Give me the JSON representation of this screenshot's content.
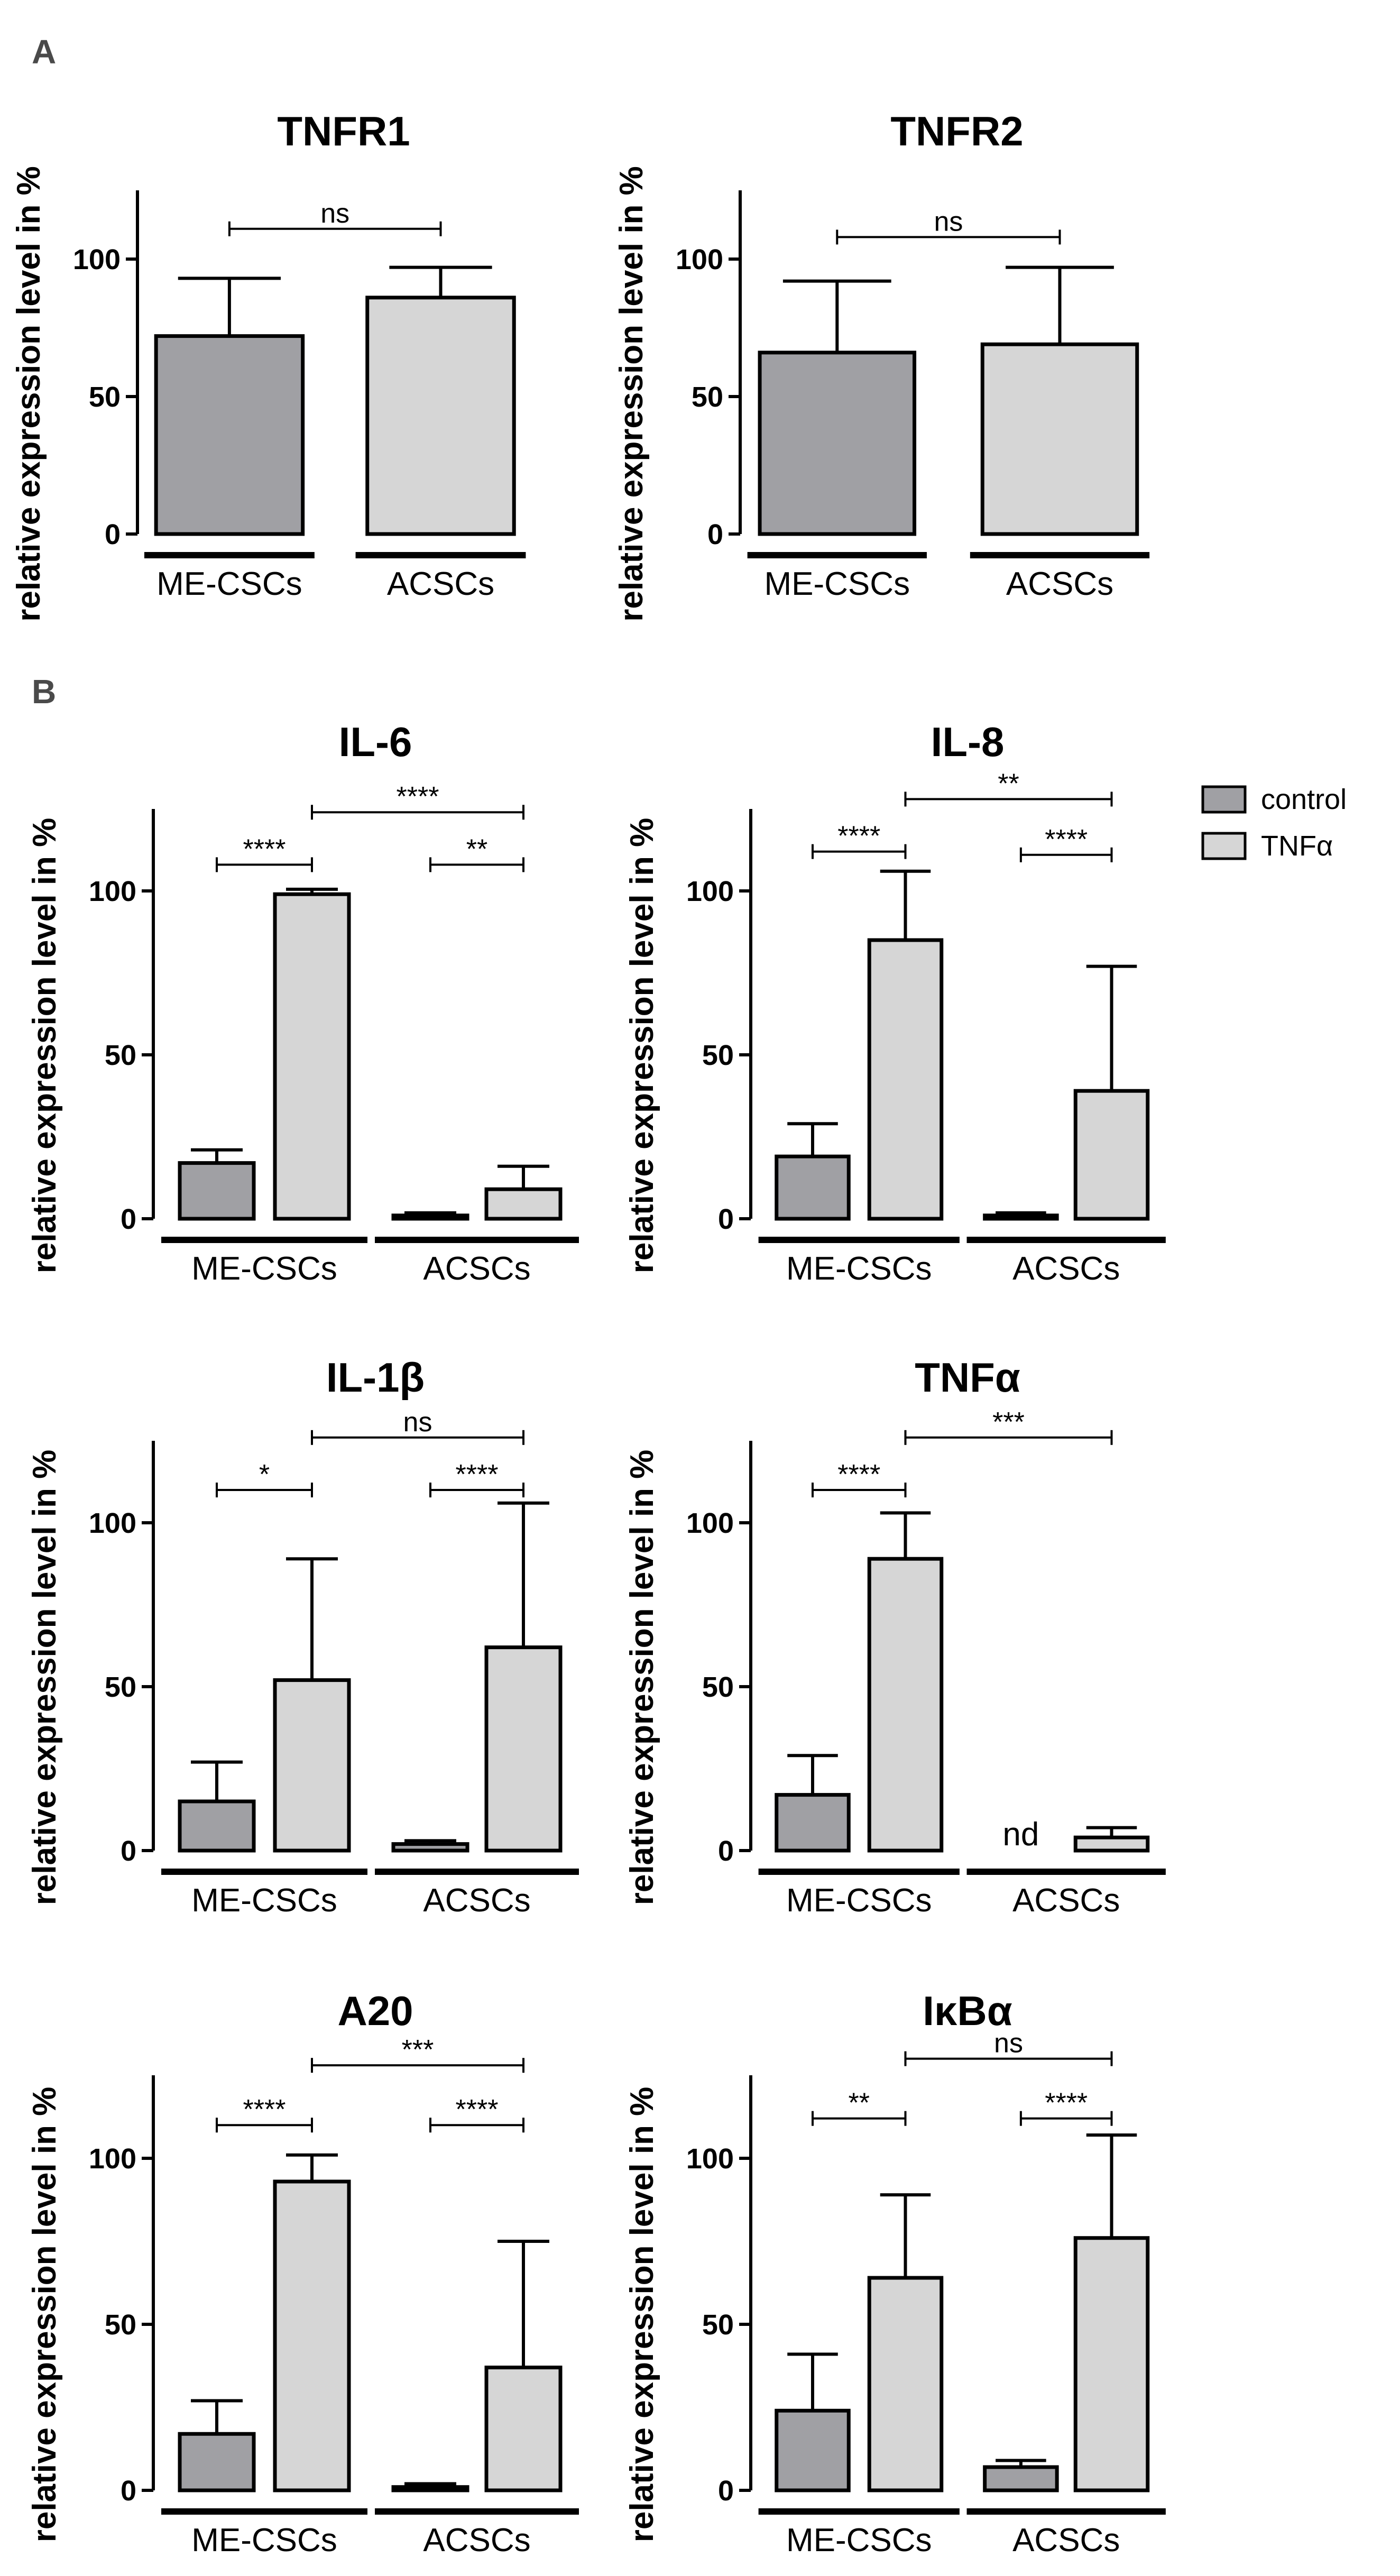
{
  "panel_letters": {
    "a": "A",
    "b": "B"
  },
  "colors": {
    "control": "#a0a0a4",
    "treated": "#d6d6d6",
    "axis": "#000000"
  },
  "legend": [
    {
      "label": "control",
      "color": "#a0a0a4"
    },
    {
      "label": "TNFα",
      "color": "#d6d6d6"
    }
  ],
  "chart_data": [
    {
      "type": "bar",
      "panel": "A",
      "title": "TNFR1",
      "ylabel": "relative expression level in %",
      "ylim": [
        0,
        125
      ],
      "yticks": [
        0,
        50,
        100
      ],
      "groups": [
        "ME-CSCs",
        "ACSCs"
      ],
      "bars": [
        {
          "group": "ME-CSCs",
          "series": "control",
          "value": 72,
          "error": 21
        },
        {
          "group": "ACSCs",
          "series": "treated",
          "value": 86,
          "error": 11
        }
      ],
      "significance": [
        {
          "from": 0,
          "to": 1,
          "label": "ns",
          "y": 111
        }
      ]
    },
    {
      "type": "bar",
      "panel": "A",
      "title": "TNFR2",
      "ylabel": "relative expression level in %",
      "ylim": [
        0,
        125
      ],
      "yticks": [
        0,
        50,
        100
      ],
      "groups": [
        "ME-CSCs",
        "ACSCs"
      ],
      "bars": [
        {
          "group": "ME-CSCs",
          "series": "control",
          "value": 66,
          "error": 26
        },
        {
          "group": "ACSCs",
          "series": "treated",
          "value": 69,
          "error": 28
        }
      ],
      "significance": [
        {
          "from": 0,
          "to": 1,
          "label": "ns",
          "y": 108
        }
      ]
    },
    {
      "type": "bar",
      "panel": "B",
      "title": "IL-6",
      "ylabel": "relative expression level in %",
      "ylim": [
        0,
        125
      ],
      "yticks": [
        0,
        50,
        100
      ],
      "groups": [
        "ME-CSCs",
        "ACSCs"
      ],
      "bars": [
        {
          "group": "ME-CSCs",
          "series": "control",
          "value": 17,
          "error": 4
        },
        {
          "group": "ME-CSCs",
          "series": "TNFα",
          "value": 99,
          "error": 1.5
        },
        {
          "group": "ACSCs",
          "series": "control",
          "value": 1,
          "error": 0.8
        },
        {
          "group": "ACSCs",
          "series": "TNFα",
          "value": 9,
          "error": 7
        }
      ],
      "significance": [
        {
          "from": 0,
          "to": 1,
          "label": "****",
          "y": 108
        },
        {
          "from": 1,
          "to": 3,
          "label": "****",
          "y": 124
        },
        {
          "from": 2,
          "to": 3,
          "label": "**",
          "y": 108
        }
      ]
    },
    {
      "type": "bar",
      "panel": "B",
      "title": "IL-8",
      "ylabel": "relative expression level in %",
      "ylim": [
        0,
        125
      ],
      "yticks": [
        0,
        50,
        100
      ],
      "groups": [
        "ME-CSCs",
        "ACSCs"
      ],
      "bars": [
        {
          "group": "ME-CSCs",
          "series": "control",
          "value": 19,
          "error": 10
        },
        {
          "group": "ME-CSCs",
          "series": "TNFα",
          "value": 85,
          "error": 21
        },
        {
          "group": "ACSCs",
          "series": "control",
          "value": 1,
          "error": 0.8
        },
        {
          "group": "ACSCs",
          "series": "TNFα",
          "value": 39,
          "error": 38
        }
      ],
      "significance": [
        {
          "from": 0,
          "to": 1,
          "label": "****",
          "y": 112
        },
        {
          "from": 1,
          "to": 3,
          "label": "**",
          "y": 128
        },
        {
          "from": 2,
          "to": 3,
          "label": "****",
          "y": 111
        }
      ]
    },
    {
      "type": "bar",
      "panel": "B",
      "title": "IL-1β",
      "ylabel": "relative expression level in %",
      "ylim": [
        0,
        125
      ],
      "yticks": [
        0,
        50,
        100
      ],
      "groups": [
        "ME-CSCs",
        "ACSCs"
      ],
      "bars": [
        {
          "group": "ME-CSCs",
          "series": "control",
          "value": 15,
          "error": 12
        },
        {
          "group": "ME-CSCs",
          "series": "TNFα",
          "value": 52,
          "error": 37
        },
        {
          "group": "ACSCs",
          "series": "control",
          "value": 2,
          "error": 1
        },
        {
          "group": "ACSCs",
          "series": "TNFα",
          "value": 62,
          "error": 44
        }
      ],
      "significance": [
        {
          "from": 0,
          "to": 1,
          "label": "*",
          "y": 110
        },
        {
          "from": 1,
          "to": 3,
          "label": "ns",
          "y": 126
        },
        {
          "from": 2,
          "to": 3,
          "label": "****",
          "y": 110
        }
      ]
    },
    {
      "type": "bar",
      "panel": "B",
      "title": "TNFα",
      "ylabel": "relative expression level in %",
      "ylim": [
        0,
        125
      ],
      "yticks": [
        0,
        50,
        100
      ],
      "groups": [
        "ME-CSCs",
        "ACSCs"
      ],
      "bars": [
        {
          "group": "ME-CSCs",
          "series": "control",
          "value": 17,
          "error": 12
        },
        {
          "group": "ME-CSCs",
          "series": "TNFα",
          "value": 89,
          "error": 14
        },
        {
          "group": "ACSCs",
          "series": "control",
          "value": 0,
          "error": 0,
          "annotation": "nd"
        },
        {
          "group": "ACSCs",
          "series": "TNFα",
          "value": 4,
          "error": 3
        }
      ],
      "significance": [
        {
          "from": 0,
          "to": 1,
          "label": "****",
          "y": 110
        },
        {
          "from": 1,
          "to": 3,
          "label": "***",
          "y": 126
        }
      ]
    },
    {
      "type": "bar",
      "panel": "B",
      "title": "A20",
      "ylabel": "relative expression level in %",
      "ylim": [
        0,
        125
      ],
      "yticks": [
        0,
        50,
        100
      ],
      "groups": [
        "ME-CSCs",
        "ACSCs"
      ],
      "bars": [
        {
          "group": "ME-CSCs",
          "series": "control",
          "value": 17,
          "error": 10
        },
        {
          "group": "ME-CSCs",
          "series": "TNFα",
          "value": 93,
          "error": 8
        },
        {
          "group": "ACSCs",
          "series": "control",
          "value": 1,
          "error": 1
        },
        {
          "group": "ACSCs",
          "series": "TNFα",
          "value": 37,
          "error": 38
        }
      ],
      "significance": [
        {
          "from": 0,
          "to": 1,
          "label": "****",
          "y": 110
        },
        {
          "from": 1,
          "to": 3,
          "label": "***",
          "y": 128
        },
        {
          "from": 2,
          "to": 3,
          "label": "****",
          "y": 110
        }
      ]
    },
    {
      "type": "bar",
      "panel": "B",
      "title": "IκBα",
      "ylabel": "relative expression level in %",
      "ylim": [
        0,
        125
      ],
      "yticks": [
        0,
        50,
        100
      ],
      "groups": [
        "ME-CSCs",
        "ACSCs"
      ],
      "bars": [
        {
          "group": "ME-CSCs",
          "series": "control",
          "value": 24,
          "error": 17
        },
        {
          "group": "ME-CSCs",
          "series": "TNFα",
          "value": 64,
          "error": 25
        },
        {
          "group": "ACSCs",
          "series": "control",
          "value": 7,
          "error": 2
        },
        {
          "group": "ACSCs",
          "series": "TNFα",
          "value": 76,
          "error": 31
        }
      ],
      "significance": [
        {
          "from": 0,
          "to": 1,
          "label": "**",
          "y": 112
        },
        {
          "from": 1,
          "to": 3,
          "label": "ns",
          "y": 130
        },
        {
          "from": 2,
          "to": 3,
          "label": "****",
          "y": 112
        }
      ]
    }
  ]
}
